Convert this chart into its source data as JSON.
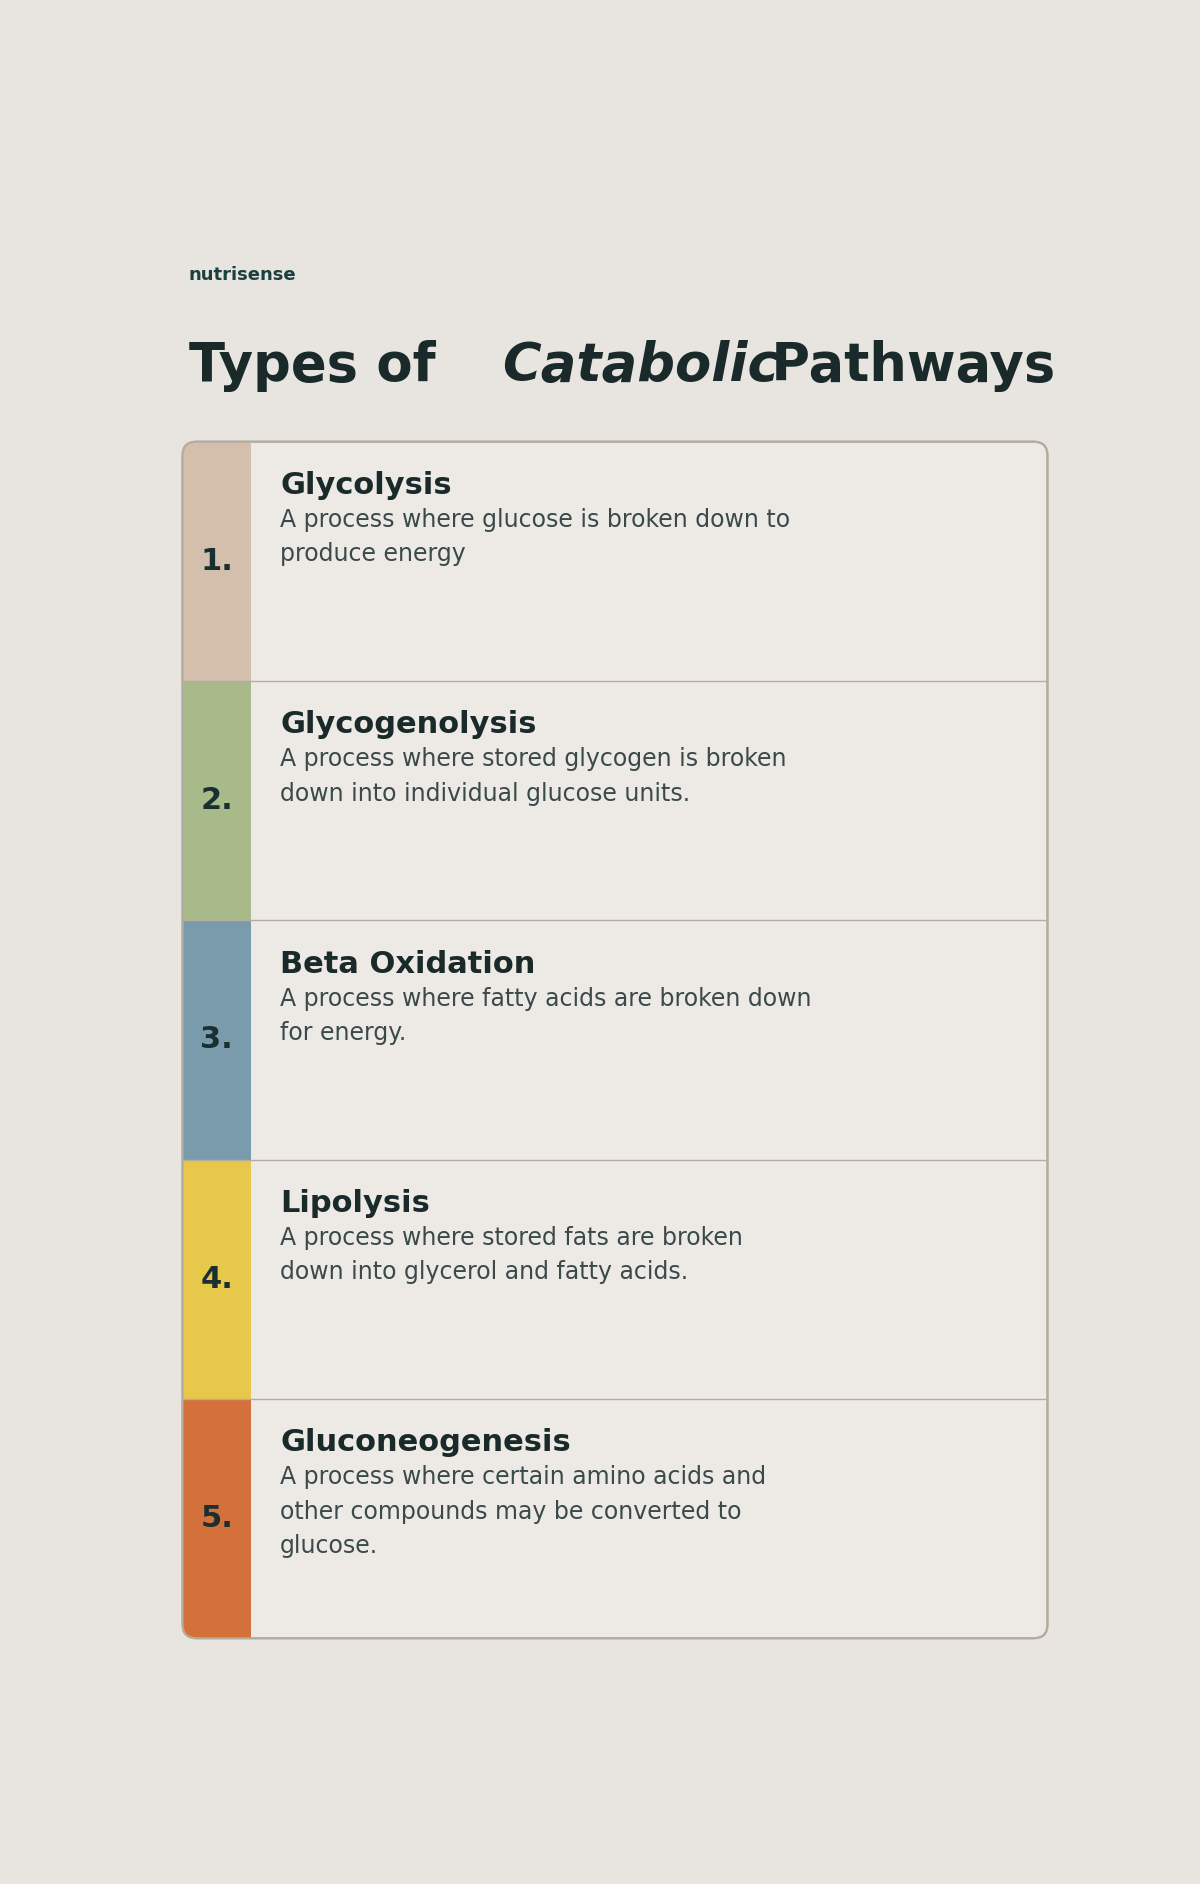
{
  "background_color": "#e8e4df",
  "logo_text": "nutrisense",
  "logo_color": "#1a4040",
  "logo_fontsize": 13,
  "title_color": "#1a2a2a",
  "title_fontsize": 38,
  "card_bg": "#edeae5",
  "card_border_color": "#b5aca0",
  "items": [
    {
      "number": "1.",
      "title": "Glycolysis",
      "description": "A process where glucose is broken down to\nproduce energy",
      "sidebar_color": "#d4bfad"
    },
    {
      "number": "2.",
      "title": "Glycogenolysis",
      "description": "A process where stored glycogen is broken\ndown into individual glucose units.",
      "sidebar_color": "#a8ba8a"
    },
    {
      "number": "3.",
      "title": "Beta Oxidation",
      "description": "A process where fatty acids are broken down\nfor energy.",
      "sidebar_color": "#7a9bab"
    },
    {
      "number": "4.",
      "title": "Lipolysis",
      "description": "A process where stored fats are broken\ndown into glycerol and fatty acids.",
      "sidebar_color": "#e8c84a"
    },
    {
      "number": "5.",
      "title": "Gluconeogenesis",
      "description": "A process where certain amino acids and\nother compounds may be converted to\nglucose.",
      "sidebar_color": "#d4703a"
    }
  ],
  "number_color": "#1a3030",
  "item_title_color": "#1a2a2a",
  "description_color": "#3a4a4a",
  "number_fontsize": 22,
  "item_title_fontsize": 22,
  "description_fontsize": 17
}
